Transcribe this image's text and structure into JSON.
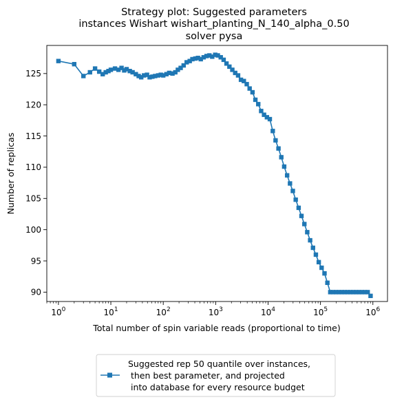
{
  "chart_data": {
    "type": "line",
    "title_lines": [
      "Strategy plot: Suggested parameters",
      "instances Wishart wishart_planting_N_140_alpha_0.50",
      "solver pysa"
    ],
    "xlabel": "Total number of spin variable reads (proportional to time)",
    "ylabel": "Number of replicas",
    "x_scale": "log",
    "xlim": [
      0.6,
      1900000
    ],
    "ylim": [
      88.5,
      129.5
    ],
    "x_ticks": [
      {
        "base": "10",
        "exp": "0",
        "value": 1
      },
      {
        "base": "10",
        "exp": "1",
        "value": 10
      },
      {
        "base": "10",
        "exp": "2",
        "value": 100
      },
      {
        "base": "10",
        "exp": "3",
        "value": 1000
      },
      {
        "base": "10",
        "exp": "4",
        "value": 10000
      },
      {
        "base": "10",
        "exp": "5",
        "value": 100000
      },
      {
        "base": "10",
        "exp": "6",
        "value": 1000000
      }
    ],
    "y_ticks": [
      "90",
      "95",
      "100",
      "105",
      "110",
      "115",
      "120",
      "125"
    ],
    "grid": false,
    "legend_placement": "below-plot",
    "series": [
      {
        "name": "Suggested rep 50 quantile over instances,\n then best parameter, and projected\n into database for every resource budget",
        "legend_lines": [
          "Suggested rep 50 quantile over instances,",
          " then best parameter, and projected",
          " into database for every resource budget"
        ],
        "color": "#1f77b4",
        "marker": "square",
        "x": [
          1,
          2,
          3,
          4,
          5,
          6,
          7,
          8,
          9,
          10,
          12,
          14,
          16,
          18,
          20,
          23,
          26,
          30,
          34,
          38,
          43,
          49,
          55,
          62,
          70,
          80,
          90,
          100,
          115,
          130,
          150,
          170,
          190,
          215,
          245,
          280,
          320,
          360,
          410,
          460,
          520,
          590,
          670,
          760,
          860,
          980,
          1100,
          1250,
          1420,
          1610,
          1830,
          2080,
          2360,
          2680,
          3040,
          3450,
          3920,
          4450,
          5050,
          5730,
          6500,
          7380,
          8380,
          9510,
          10800,
          12300,
          13900,
          15800,
          17900,
          20300,
          23100,
          26200,
          29700,
          33700,
          38300,
          43400,
          49300,
          55900,
          63500,
          72000,
          81700,
          92700,
          105200,
          119400,
          135500,
          153800,
          174500,
          198000,
          224700,
          255000,
          289400,
          328400,
          372700,
          423000,
          480000,
          544800,
          618200,
          701600,
          796200,
          903500
        ],
        "y": [
          127.0,
          126.5,
          124.6,
          125.2,
          125.8,
          125.3,
          124.9,
          125.2,
          125.4,
          125.6,
          125.8,
          125.6,
          125.9,
          125.5,
          125.7,
          125.4,
          125.2,
          124.9,
          124.6,
          124.4,
          124.7,
          124.8,
          124.4,
          124.5,
          124.6,
          124.7,
          124.8,
          124.7,
          124.9,
          125.1,
          125.0,
          125.2,
          125.6,
          125.9,
          126.3,
          126.8,
          127.0,
          127.3,
          127.4,
          127.5,
          127.3,
          127.6,
          127.8,
          127.9,
          127.7,
          128.0,
          127.9,
          127.6,
          127.2,
          126.6,
          126.1,
          125.6,
          125.1,
          124.7,
          124.0,
          123.8,
          123.3,
          122.6,
          122.0,
          120.8,
          120.1,
          119.0,
          118.4,
          118.0,
          117.7,
          115.8,
          114.3,
          113.0,
          111.6,
          110.1,
          108.7,
          107.4,
          106.2,
          104.8,
          103.5,
          102.2,
          100.9,
          99.6,
          98.3,
          97.1,
          96.0,
          94.8,
          93.9,
          93.0,
          91.5,
          90.0,
          90.0,
          90.0,
          90.0,
          90.0,
          90.0,
          90.0,
          90.0,
          90.0,
          90.0,
          90.0,
          90.0,
          90.0,
          90.0,
          89.4
        ]
      }
    ]
  }
}
